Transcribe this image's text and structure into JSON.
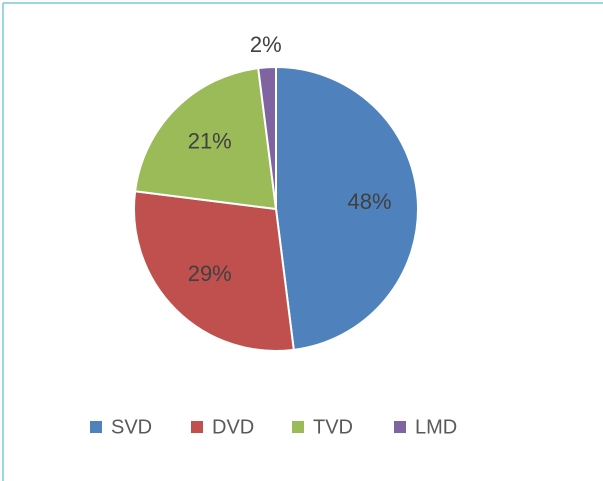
{
  "chart_data": {
    "type": "pie",
    "categories": [
      "SVD",
      "DVD",
      "TVD",
      "LMD"
    ],
    "values": [
      48,
      29,
      21,
      2
    ],
    "value_labels": [
      "48%",
      "29%",
      "21%",
      "2%"
    ],
    "colors": [
      "#4f81bd",
      "#c0504d",
      "#9bbb59",
      "#8064a2"
    ],
    "legend": "bottom"
  }
}
